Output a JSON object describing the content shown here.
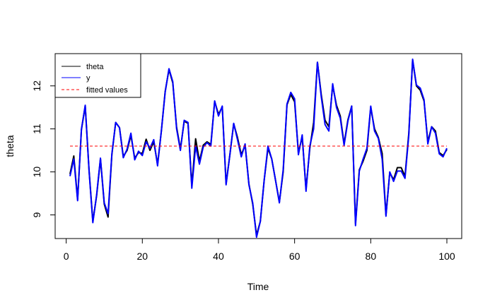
{
  "chart_data": {
    "type": "line",
    "title": "",
    "xlabel": "Time",
    "ylabel": "theta",
    "xlim": [
      -2.9,
      103.9
    ],
    "ylim": [
      8.45,
      12.75
    ],
    "x_ticks": [
      0,
      20,
      40,
      60,
      80,
      100
    ],
    "y_ticks": [
      9,
      10,
      11,
      12
    ],
    "legend": {
      "placement": "top-left",
      "entries": [
        {
          "label": "theta",
          "color": "#000000",
          "style": "solid"
        },
        {
          "label": "y",
          "color": "#0000ff",
          "style": "solid"
        },
        {
          "label": "fitted values",
          "color": "#ff0000",
          "style": "dashed"
        }
      ]
    },
    "series": [
      {
        "name": "theta",
        "color": "#000000",
        "x": [
          1,
          2,
          3,
          4,
          5,
          6,
          7,
          8,
          9,
          10,
          11,
          12,
          13,
          14,
          15,
          16,
          17,
          18,
          19,
          20,
          21,
          22,
          23,
          24,
          25,
          26,
          27,
          28,
          29,
          30,
          31,
          32,
          33,
          34,
          35,
          36,
          37,
          38,
          39,
          40,
          41,
          42,
          43,
          44,
          45,
          46,
          47,
          48,
          49,
          50,
          51,
          52,
          53,
          54,
          55,
          56,
          57,
          58,
          59,
          60,
          61,
          62,
          63,
          64,
          65,
          66,
          67,
          68,
          69,
          70,
          71,
          72,
          73,
          74,
          75,
          76,
          77,
          78,
          79,
          80,
          81,
          82,
          83,
          84,
          85,
          86,
          87,
          88,
          89,
          90,
          91,
          92,
          93,
          94,
          95,
          96,
          97,
          98,
          99,
          100
        ],
        "values": [
          9.95,
          10.37,
          9.36,
          10.98,
          11.53,
          10.05,
          8.85,
          9.45,
          10.3,
          9.25,
          8.95,
          10.4,
          11.15,
          11.03,
          10.36,
          10.5,
          10.85,
          10.32,
          10.45,
          10.43,
          10.76,
          10.5,
          10.7,
          10.18,
          10.95,
          11.87,
          12.38,
          12.07,
          11.04,
          10.53,
          11.18,
          11.13,
          9.68,
          10.77,
          10.25,
          10.62,
          10.7,
          10.64,
          11.64,
          11.34,
          11.51,
          9.73,
          10.4,
          11.12,
          10.8,
          10.4,
          10.62,
          9.72,
          9.25,
          8.53,
          8.85,
          9.8,
          10.55,
          10.3,
          9.8,
          9.3,
          10.0,
          11.56,
          11.8,
          11.63,
          10.45,
          10.81,
          9.6,
          10.55,
          11.15,
          12.55,
          11.8,
          11.2,
          11.05,
          12.01,
          11.55,
          11.3,
          10.65,
          11.21,
          11.53,
          8.8,
          10.05,
          10.25,
          10.5,
          11.5,
          11.0,
          10.8,
          10.43,
          9.0,
          9.98,
          9.82,
          10.1,
          10.1,
          9.9,
          10.9,
          12.6,
          12.0,
          11.9,
          11.65,
          10.7,
          11.05,
          10.95,
          10.45,
          10.38,
          10.52
        ]
      },
      {
        "name": "y",
        "color": "#0000ff",
        "x": [
          1,
          2,
          3,
          4,
          5,
          6,
          7,
          8,
          9,
          10,
          11,
          12,
          13,
          14,
          15,
          16,
          17,
          18,
          19,
          20,
          21,
          22,
          23,
          24,
          25,
          26,
          27,
          28,
          29,
          30,
          31,
          32,
          33,
          34,
          35,
          36,
          37,
          38,
          39,
          40,
          41,
          42,
          43,
          44,
          45,
          46,
          47,
          48,
          49,
          50,
          51,
          52,
          53,
          54,
          55,
          56,
          57,
          58,
          59,
          60,
          61,
          62,
          63,
          64,
          65,
          66,
          67,
          68,
          69,
          70,
          71,
          72,
          73,
          74,
          75,
          76,
          77,
          78,
          79,
          80,
          81,
          82,
          83,
          84,
          85,
          86,
          87,
          88,
          89,
          90,
          91,
          92,
          93,
          94,
          95,
          96,
          97,
          98,
          99,
          100
        ],
        "values": [
          9.9,
          10.3,
          9.33,
          10.99,
          11.55,
          10.03,
          8.82,
          9.47,
          10.32,
          9.28,
          9.03,
          10.42,
          11.15,
          11.03,
          10.33,
          10.53,
          10.9,
          10.28,
          10.48,
          10.38,
          10.7,
          10.55,
          10.75,
          10.14,
          10.95,
          11.85,
          12.4,
          12.1,
          11.0,
          10.5,
          11.2,
          11.15,
          9.62,
          10.6,
          10.18,
          10.58,
          10.68,
          10.6,
          11.65,
          11.3,
          11.53,
          9.7,
          10.4,
          11.13,
          10.75,
          10.35,
          10.65,
          9.7,
          9.28,
          8.48,
          8.85,
          9.8,
          10.6,
          10.3,
          9.8,
          9.28,
          10.05,
          11.58,
          11.85,
          11.7,
          10.4,
          10.86,
          9.55,
          10.6,
          11.0,
          12.55,
          11.75,
          11.1,
          10.95,
          12.05,
          11.5,
          11.25,
          10.62,
          11.18,
          11.53,
          8.75,
          10.02,
          10.3,
          10.55,
          11.53,
          10.95,
          10.78,
          10.3,
          8.97,
          10.0,
          9.78,
          10.02,
          10.02,
          9.85,
          10.85,
          12.62,
          12.02,
          11.95,
          11.68,
          10.65,
          11.05,
          10.9,
          10.42,
          10.35,
          10.55
        ]
      },
      {
        "name": "fitted values",
        "color": "#ff0000",
        "x": [
          1,
          100
        ],
        "values": [
          10.6,
          10.6
        ]
      }
    ]
  }
}
